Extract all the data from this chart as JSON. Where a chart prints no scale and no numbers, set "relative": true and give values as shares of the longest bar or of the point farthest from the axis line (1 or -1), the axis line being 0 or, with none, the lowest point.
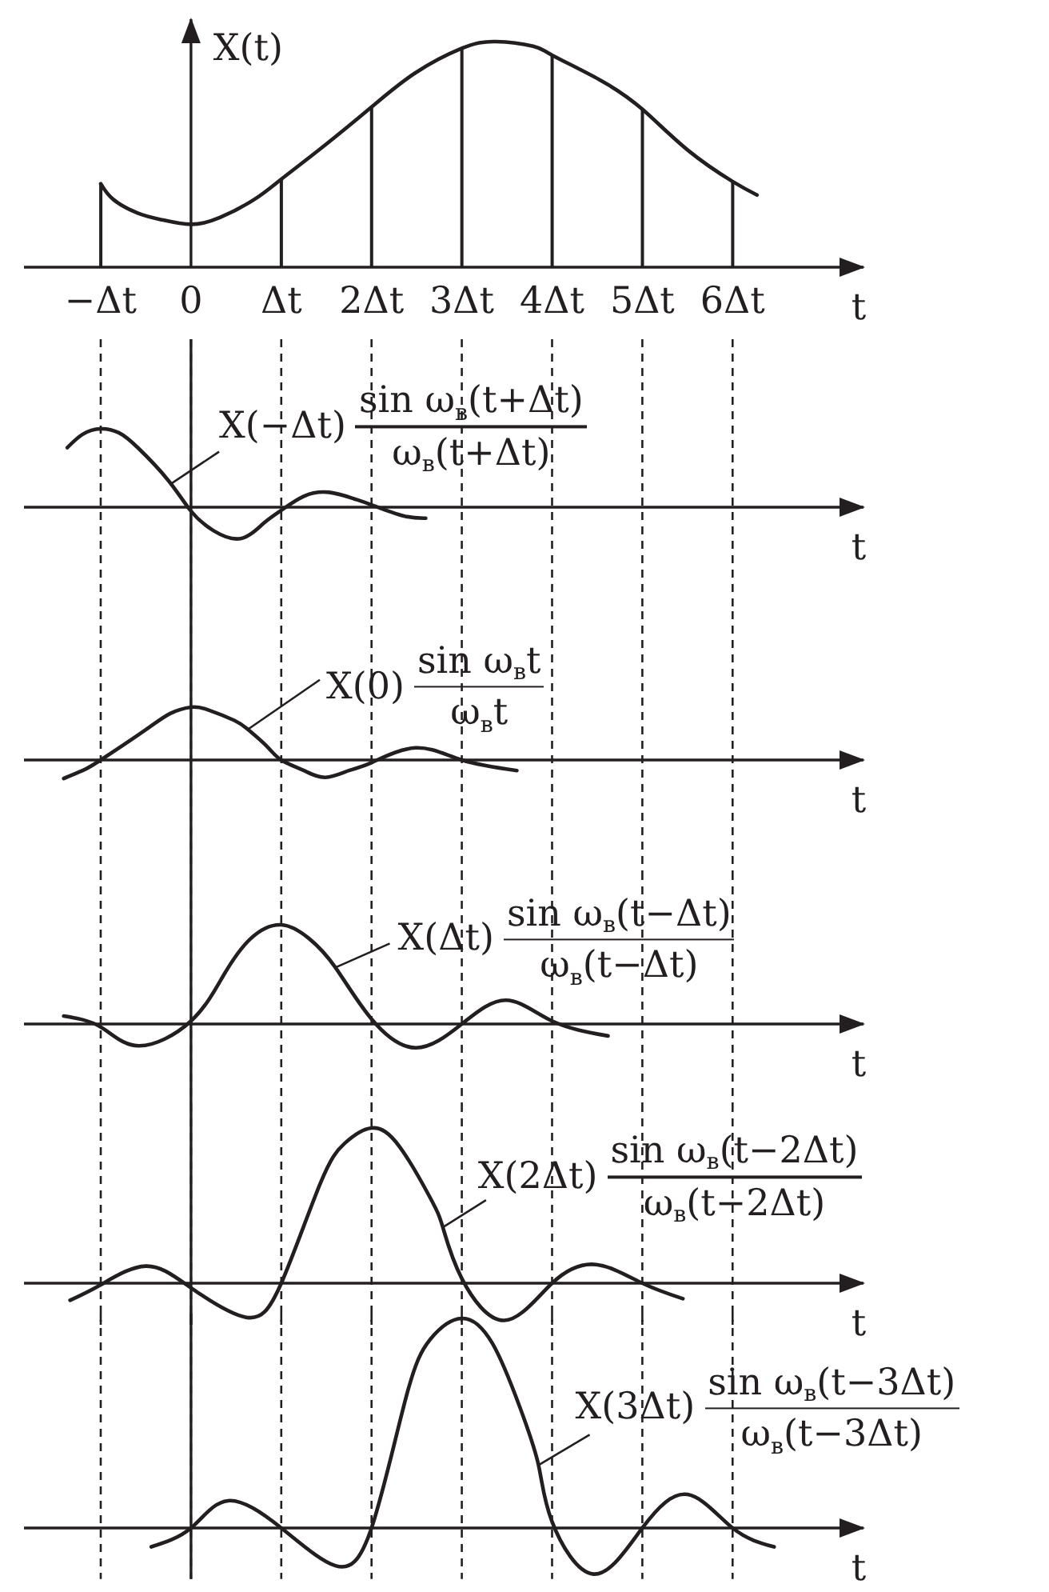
{
  "chart_data": [
    {
      "type": "line",
      "relative": true,
      "ylabel": "X(t)",
      "xlabel": "t",
      "xlim": [
        -1.85,
        7.45
      ],
      "xticks": [
        {
          "value": -1,
          "label": "−Δt"
        },
        0,
        {
          "value": 1,
          "label": "Δt"
        },
        {
          "value": 2,
          "label": "2Δt"
        },
        {
          "value": 3,
          "label": "3Δt"
        },
        {
          "value": 4,
          "label": "4Δt"
        },
        {
          "value": 5,
          "label": "5Δt"
        },
        {
          "value": 6,
          "label": "6Δt"
        }
      ],
      "tick_labels": "x",
      "grid": false,
      "ref_lines": [
        {
          "axis": "x",
          "value": 0
        }
      ],
      "series": [
        {
          "color": "#231f20",
          "x": [
            -1,
            -0.86,
            -0.59,
            -0.32,
            0,
            0.32,
            0.7,
            1,
            1.45,
            2,
            2.48,
            3,
            3.38,
            3.79,
            4,
            4.53,
            5,
            5.5,
            6,
            6.27
          ],
          "values": [
            0.37,
            0.3,
            0.24,
            0.21,
            0.19,
            0.22,
            0.3,
            0.39,
            0.53,
            0.71,
            0.86,
            0.97,
            1,
            0.98,
            0.94,
            0.83,
            0.7,
            0.52,
            0.38,
            0.32
          ]
        },
        {
          "type": "bar",
          "color": "#231f20",
          "x": [
            -1,
            1,
            2,
            3,
            4,
            5,
            6
          ],
          "values": [
            0.37,
            0.39,
            0.71,
            0.97,
            0.94,
            0.7,
            0.38
          ]
        }
      ]
    },
    {
      "type": "line",
      "relative": true,
      "xlabel": "t",
      "xlim": [
        -1.85,
        7.45
      ],
      "xticks": [
        -1,
        0,
        1,
        2,
        3,
        4,
        5,
        6
      ],
      "tick_labels": false,
      "grid": "x",
      "ref_lines": [
        {
          "axis": "x",
          "value": 0
        }
      ],
      "annotations": [
        {
          "text": "X(−Δt)",
          "x": -0.22,
          "y": 0.3
        },
        "sin ω$_{в}$(t+Δt)",
        "ω$_{в}$(t+Δt)"
      ],
      "series": [
        {
          "color": "#231f20",
          "x": [
            -1.37,
            -1.2,
            -1,
            -0.8,
            -0.59,
            -0.25,
            0,
            0.25,
            0.55,
            0.8,
            1,
            1.25,
            1.53,
            1.8,
            2,
            2.35,
            2.6
          ],
          "values": [
            0.76,
            0.93,
            1,
            0.95,
            0.76,
            0.34,
            -0.05,
            -0.3,
            -0.4,
            -0.21,
            -0.04,
            0.14,
            0.19,
            0.11,
            0.03,
            -0.11,
            -0.14
          ]
        }
      ]
    },
    {
      "type": "line",
      "relative": true,
      "xlabel": "t",
      "xlim": [
        -1.85,
        7.45
      ],
      "xticks": [
        -1,
        0,
        1,
        2,
        3,
        4,
        5,
        6
      ],
      "tick_labels": false,
      "grid": "x",
      "ref_lines": [
        {
          "axis": "x",
          "value": 0
        }
      ],
      "annotations": [
        {
          "text": "X(0)",
          "x": 0.63,
          "y": 0.58
        },
        "sin ω$_{в}$t",
        "ω$_{в}$t"
      ],
      "series": [
        {
          "color": "#231f20",
          "x": [
            -1.41,
            -1.2,
            -1,
            -0.52,
            -0.23,
            0,
            0.19,
            0.48,
            0.63,
            0.84,
            1,
            1.25,
            1.49,
            1.75,
            2,
            2.49,
            3,
            3.61
          ],
          "values": [
            -0.35,
            -0.2,
            0,
            0.55,
            0.88,
            1,
            0.95,
            0.75,
            0.58,
            0.26,
            0,
            -0.2,
            -0.33,
            -0.2,
            -0.05,
            0.23,
            0,
            -0.2
          ]
        }
      ]
    },
    {
      "type": "line",
      "relative": true,
      "xlabel": "t",
      "xlim": [
        -1.85,
        7.45
      ],
      "xticks": [
        -1,
        0,
        1,
        2,
        3,
        4,
        5,
        6
      ],
      "tick_labels": false,
      "grid": "x",
      "ref_lines": [
        {
          "axis": "x",
          "value": 0
        }
      ],
      "annotations": [
        {
          "text": "X(Δt)",
          "x": 1.6,
          "y": 0.57
        },
        "sin ω$_{в}$(t−Δt)",
        "ω$_{в}$(t−Δt)"
      ],
      "series": [
        {
          "color": "#231f20",
          "x": [
            -1.41,
            -1,
            -0.58,
            0,
            0.36,
            0.66,
            1,
            1.31,
            1.6,
            2,
            2.49,
            3,
            3.49,
            4,
            4.62
          ],
          "values": [
            0.08,
            -0.03,
            -0.22,
            0.03,
            0.49,
            0.86,
            1,
            0.86,
            0.57,
            0.05,
            -0.24,
            0,
            0.24,
            0.03,
            -0.12
          ]
        }
      ]
    },
    {
      "type": "line",
      "relative": true,
      "xlabel": "t",
      "xlim": [
        -1.85,
        7.45
      ],
      "xticks": [
        -1,
        0,
        1,
        2,
        3,
        4,
        5,
        6
      ],
      "tick_labels": false,
      "grid": "x",
      "ref_lines": [
        {
          "axis": "x",
          "value": 0
        }
      ],
      "annotations": [
        {
          "text": "X(2Δt)",
          "x": 2.79,
          "y": 0.36
        },
        "sin ω$_{в}$(t−2Δt)",
        "ω$_{в}$(t−2Δt)"
      ],
      "series": [
        {
          "color": "#231f20",
          "x": [
            -1.34,
            -1,
            -0.5,
            0,
            0.61,
            1,
            1.43,
            1.7,
            2,
            2.31,
            2.65,
            2.79,
            3,
            3.47,
            4,
            4.49,
            5,
            5.45
          ],
          "values": [
            -0.11,
            -0.01,
            0.11,
            -0.03,
            -0.22,
            0,
            0.64,
            0.9,
            1,
            0.88,
            0.55,
            0.36,
            0.03,
            -0.24,
            0,
            0.12,
            0,
            -0.1
          ]
        }
      ]
    },
    {
      "type": "line",
      "relative": true,
      "xlabel": "t",
      "xlim": [
        -1.85,
        7.45
      ],
      "xticks": [
        -1,
        0,
        1,
        2,
        3,
        4,
        5,
        6
      ],
      "tick_labels": false,
      "grid": "x",
      "ref_lines": [
        {
          "axis": "x",
          "value": 0
        }
      ],
      "annotations": [
        {
          "text": "X(3Δt)",
          "x": 3.85,
          "y": 0.3
        },
        "sin ω$_{в}$(t−3Δt)",
        "ω$_{в}$(t−3Δt)"
      ],
      "series": [
        {
          "color": "#231f20",
          "x": [
            -0.44,
            0,
            0.41,
            1,
            1.6,
            2,
            2.38,
            2.65,
            3,
            3.34,
            3.64,
            3.85,
            4,
            4.46,
            5,
            5.5,
            6,
            6.46
          ],
          "values": [
            -0.09,
            0,
            0.13,
            0,
            -0.18,
            0,
            0.62,
            0.9,
            1,
            0.88,
            0.58,
            0.3,
            0.03,
            -0.22,
            0,
            0.16,
            0,
            -0.09
          ]
        }
      ]
    }
  ]
}
